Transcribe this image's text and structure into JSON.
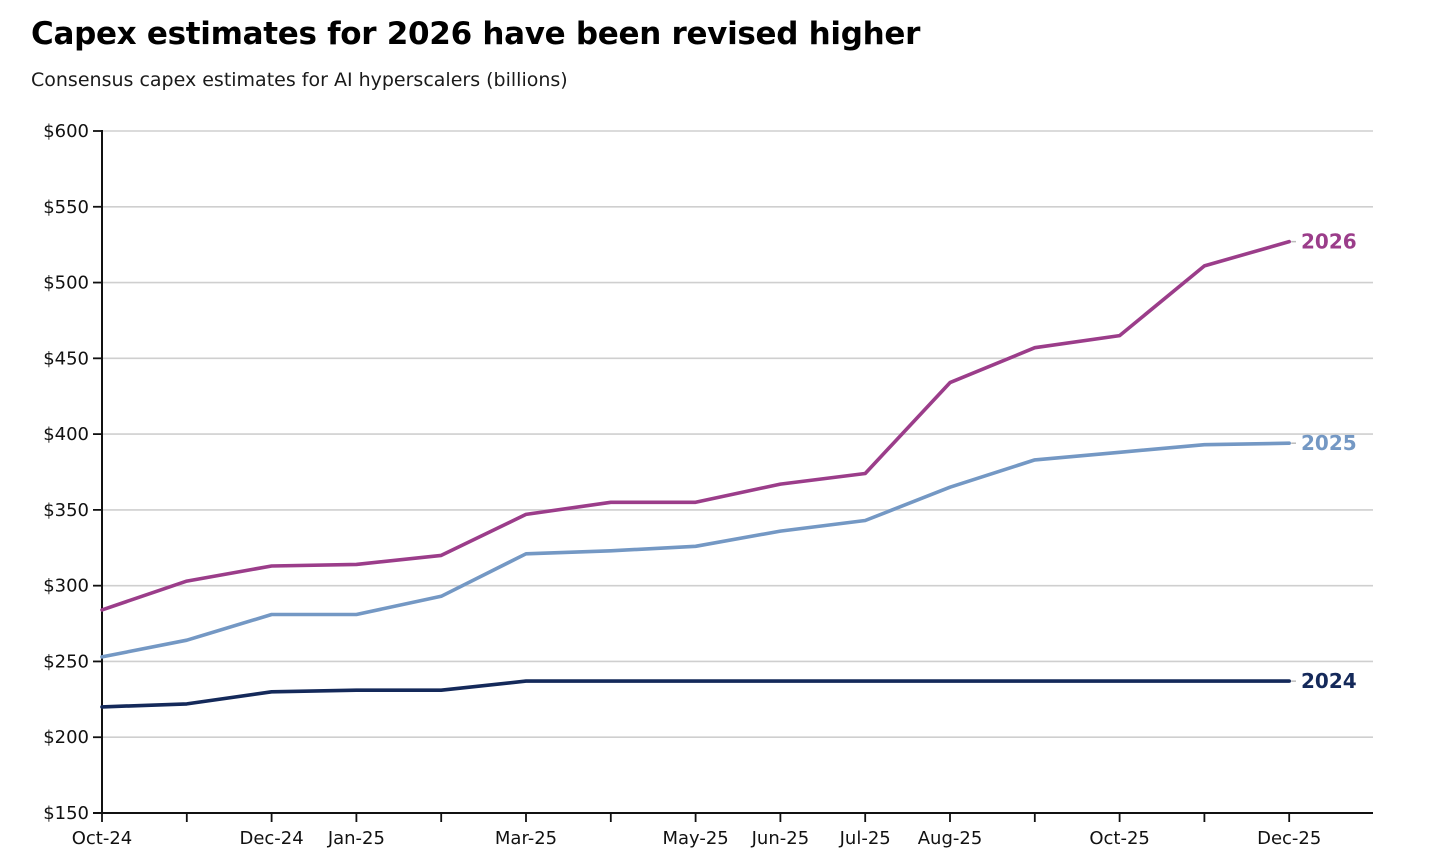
{
  "chart_data": {
    "type": "line",
    "title": "Capex estimates for 2026 have been revised higher",
    "subtitle": "Consensus capex estimates for AI hyperscalers (billions)",
    "x": [
      "Oct-24",
      "Nov-24",
      "Dec-24",
      "Jan-25",
      "Feb-25",
      "Mar-25",
      "Apr-25",
      "May-25",
      "Jun-25",
      "Jul-25",
      "Aug-25",
      "Sep-25",
      "Oct-25",
      "Nov-25",
      "Dec-25"
    ],
    "x_tick_labels": [
      "Oct-24",
      "",
      "Dec-24",
      "Jan-25",
      "",
      "Mar-25",
      "",
      "May-25",
      "Jun-25",
      "Jul-25",
      "Aug-25",
      "",
      "Oct-25",
      "",
      "Dec-25"
    ],
    "y_ticks": [
      150,
      200,
      250,
      300,
      350,
      400,
      450,
      500,
      550,
      600
    ],
    "y_tick_labels": [
      "$150",
      "$200",
      "$250",
      "$300",
      "$350",
      "$400",
      "$450",
      "$500",
      "$550",
      "$600"
    ],
    "ylim": [
      150,
      600
    ],
    "xlabel": "",
    "ylabel": "",
    "grid": "horizontal",
    "legend": "direct labels at line ends (right)",
    "series": [
      {
        "name": "2026",
        "color": "#9b3d8a",
        "values": [
          284,
          303,
          313,
          314,
          320,
          347,
          355,
          355,
          367,
          374,
          434,
          457,
          465,
          511,
          527
        ]
      },
      {
        "name": "2025",
        "color": "#7498c4",
        "values": [
          253,
          264,
          281,
          281,
          293,
          321,
          323,
          326,
          336,
          343,
          365,
          383,
          388,
          393,
          394
        ]
      },
      {
        "name": "2024",
        "color": "#14295a",
        "values": [
          220,
          222,
          230,
          231,
          231,
          237,
          237,
          237,
          237,
          237,
          237,
          237,
          237,
          237,
          237
        ]
      }
    ]
  }
}
